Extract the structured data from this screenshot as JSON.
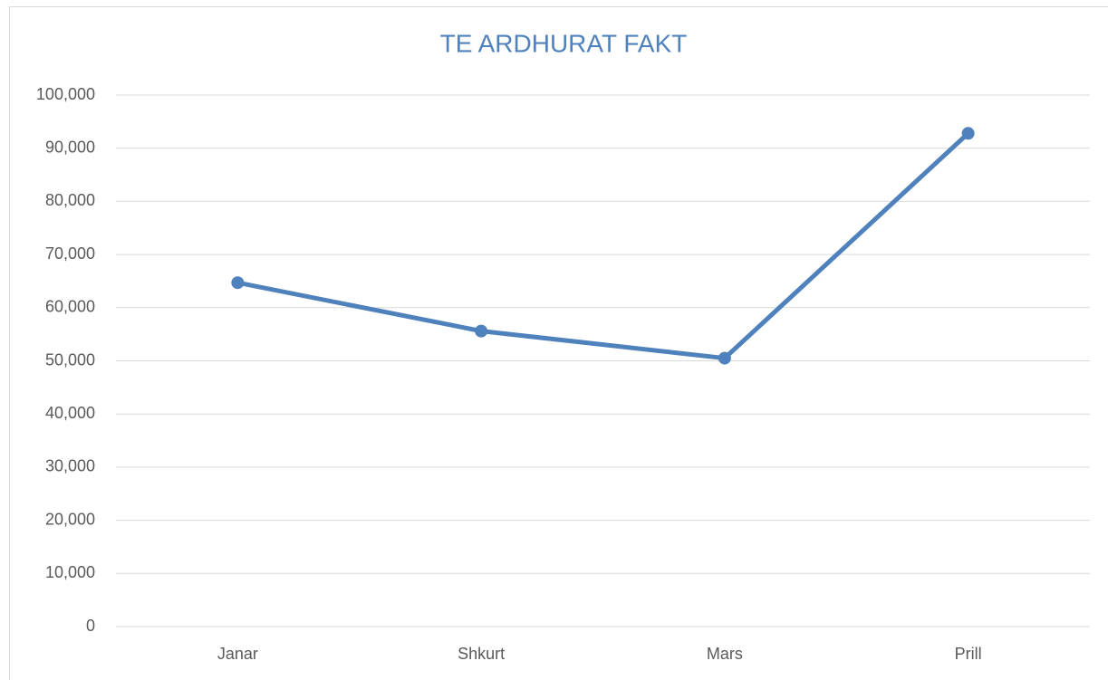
{
  "chart_data": {
    "type": "line",
    "title": "TE ARDHURAT FAKT",
    "categories": [
      "Janar",
      "Shkurt",
      "Mars",
      "Prill"
    ],
    "series": [
      {
        "name": "TE ARDHURAT FAKT",
        "color": "#4f81bd",
        "values": [
          64700,
          55600,
          50500,
          92800
        ]
      }
    ],
    "ylim": [
      0,
      100000
    ],
    "yticks": [
      0,
      {
        "value": 10000,
        "label": "10,000"
      },
      {
        "value": 20000,
        "label": "20,000"
      },
      {
        "value": 30000,
        "label": "30,000"
      },
      {
        "value": 40000,
        "label": "40,000"
      },
      {
        "value": 50000,
        "label": "50,000"
      },
      {
        "value": 60000,
        "label": "60,000"
      },
      {
        "value": 70000,
        "label": "70,000"
      },
      {
        "value": 80000,
        "label": "80,000"
      },
      {
        "value": 90000,
        "label": "90,000"
      },
      {
        "value": 100000,
        "label": "100,000"
      }
    ],
    "grid": true
  }
}
